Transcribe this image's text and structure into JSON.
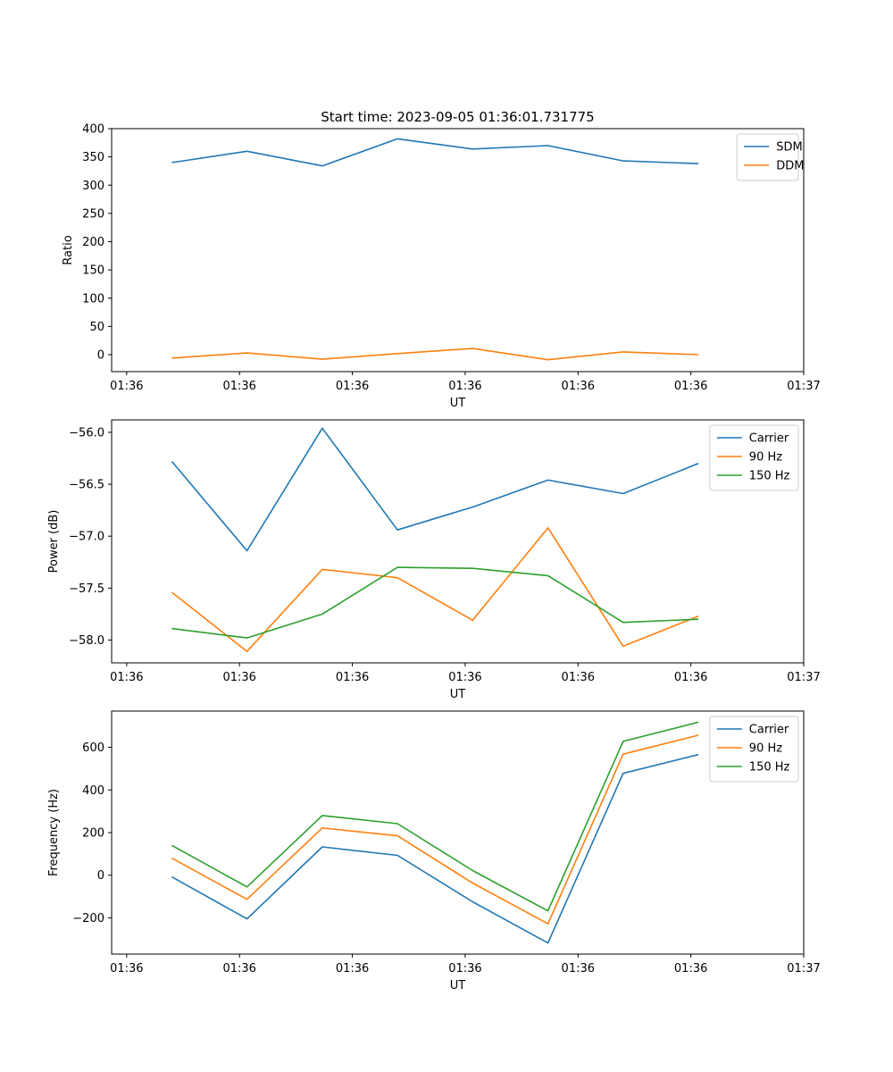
{
  "figure": {
    "title": "Start time: 2023-09-05 01:36:01.731775"
  },
  "chart_data": [
    {
      "type": "line",
      "title": "Start time: 2023-09-05 01:36:01.731775",
      "xlabel": "UT",
      "ylabel": "Ratio",
      "x": [
        1,
        2,
        3,
        4,
        5,
        6,
        7,
        8
      ],
      "xlim": [
        0.2,
        9.4
      ],
      "xticks": [
        {
          "value": 0.4,
          "label": "01:36"
        },
        {
          "value": 1.9,
          "label": "01:36"
        },
        {
          "value": 3.4,
          "label": "01:36"
        },
        {
          "value": 4.9,
          "label": "01:36"
        },
        {
          "value": 6.4,
          "label": "01:36"
        },
        {
          "value": 7.9,
          "label": "01:36"
        },
        {
          "value": 9.4,
          "label": "01:37"
        }
      ],
      "ylim": [
        -30,
        400
      ],
      "yticks": [
        {
          "value": 0,
          "label": "0"
        },
        {
          "value": 50,
          "label": "50"
        },
        {
          "value": 100,
          "label": "100"
        },
        {
          "value": 150,
          "label": "150"
        },
        {
          "value": 200,
          "label": "200"
        },
        {
          "value": 250,
          "label": "250"
        },
        {
          "value": 300,
          "label": "300"
        },
        {
          "value": 350,
          "label": "350"
        },
        {
          "value": 400,
          "label": "400"
        }
      ],
      "legend": "top-right",
      "series": [
        {
          "name": "SDM",
          "color": "#1f77b4",
          "values": [
            340,
            360,
            334,
            382,
            364,
            370,
            343,
            338
          ]
        },
        {
          "name": "DDM",
          "color": "#ff7f0e",
          "values": [
            -6,
            3,
            -8,
            2,
            11,
            -9,
            5,
            0
          ]
        }
      ]
    },
    {
      "type": "line",
      "title": "",
      "xlabel": "UT",
      "ylabel": "Power (dB)",
      "x": [
        1,
        2,
        3,
        4,
        5,
        6,
        7,
        8
      ],
      "xlim": [
        0.2,
        9.4
      ],
      "xticks": [
        {
          "value": 0.4,
          "label": "01:36"
        },
        {
          "value": 1.9,
          "label": "01:36"
        },
        {
          "value": 3.4,
          "label": "01:36"
        },
        {
          "value": 4.9,
          "label": "01:36"
        },
        {
          "value": 6.4,
          "label": "01:36"
        },
        {
          "value": 7.9,
          "label": "01:36"
        },
        {
          "value": 9.4,
          "label": "01:37"
        }
      ],
      "ylim": [
        -58.22,
        -55.88
      ],
      "yticks": [
        {
          "value": -56.0,
          "label": "−56.0"
        },
        {
          "value": -56.5,
          "label": "−56.5"
        },
        {
          "value": -57.0,
          "label": "−57.0"
        },
        {
          "value": -57.5,
          "label": "−57.5"
        },
        {
          "value": -58.0,
          "label": "−58.0"
        }
      ],
      "legend": "top-right",
      "series": [
        {
          "name": "Carrier",
          "color": "#1f77b4",
          "values": [
            -56.28,
            -57.14,
            -55.96,
            -56.94,
            -56.72,
            -56.46,
            -56.59,
            -56.3
          ]
        },
        {
          "name": "90 Hz",
          "color": "#ff7f0e",
          "values": [
            -57.54,
            -58.11,
            -57.32,
            -57.4,
            -57.81,
            -56.92,
            -58.06,
            -57.77
          ]
        },
        {
          "name": "150 Hz",
          "color": "#2ca02c",
          "values": [
            -57.89,
            -57.98,
            -57.75,
            -57.3,
            -57.31,
            -57.38,
            -57.83,
            -57.8
          ]
        }
      ]
    },
    {
      "type": "line",
      "title": "",
      "xlabel": "UT",
      "ylabel": "Frequency (Hz)",
      "x": [
        1,
        2,
        3,
        4,
        5,
        6,
        7,
        8
      ],
      "xlim": [
        0.2,
        9.4
      ],
      "xticks": [
        {
          "value": 0.4,
          "label": "01:36"
        },
        {
          "value": 1.9,
          "label": "01:36"
        },
        {
          "value": 3.4,
          "label": "01:36"
        },
        {
          "value": 4.9,
          "label": "01:36"
        },
        {
          "value": 6.4,
          "label": "01:36"
        },
        {
          "value": 7.9,
          "label": "01:36"
        },
        {
          "value": 9.4,
          "label": "01:37"
        }
      ],
      "ylim": [
        -370,
        770
      ],
      "yticks": [
        {
          "value": -200,
          "label": "−200"
        },
        {
          "value": 0,
          "label": "0"
        },
        {
          "value": 200,
          "label": "200"
        },
        {
          "value": 400,
          "label": "400"
        },
        {
          "value": 600,
          "label": "600"
        }
      ],
      "legend": "top-right",
      "series": [
        {
          "name": "Carrier",
          "color": "#1f77b4",
          "values": [
            -8,
            -205,
            133,
            93,
            -125,
            -318,
            478,
            566
          ]
        },
        {
          "name": "90 Hz",
          "color": "#ff7f0e",
          "values": [
            80,
            -113,
            222,
            185,
            -37,
            -228,
            568,
            657
          ]
        },
        {
          "name": "150 Hz",
          "color": "#2ca02c",
          "values": [
            140,
            -55,
            280,
            242,
            22,
            -167,
            628,
            718
          ]
        }
      ]
    }
  ]
}
